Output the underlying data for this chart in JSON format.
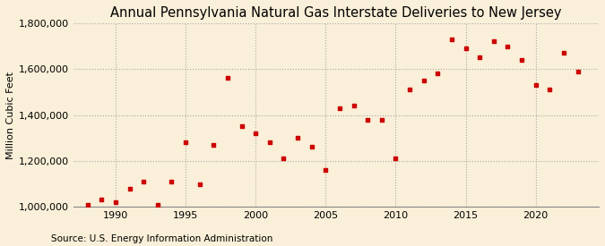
{
  "title": "Annual Pennsylvania Natural Gas Interstate Deliveries to New Jersey",
  "ylabel": "Million Cubic Feet",
  "source": "Source: U.S. Energy Information Administration",
  "background_color": "#faefd8",
  "plot_background_color": "#faefd8",
  "marker_color": "#cc0000",
  "years": [
    1988,
    1989,
    1990,
    1991,
    1992,
    1993,
    1994,
    1995,
    1996,
    1997,
    1998,
    1999,
    2000,
    2001,
    2002,
    2003,
    2004,
    2005,
    2006,
    2007,
    2008,
    2009,
    2010,
    2011,
    2012,
    2013,
    2014,
    2015,
    2016,
    2017,
    2018,
    2019,
    2020,
    2021,
    2022,
    2023
  ],
  "values": [
    1010000,
    1030000,
    1020000,
    1080000,
    1110000,
    1010000,
    1110000,
    1280000,
    1100000,
    1270000,
    1560000,
    1350000,
    1320000,
    1280000,
    1210000,
    1300000,
    1260000,
    1160000,
    1430000,
    1440000,
    1380000,
    1380000,
    1210000,
    1510000,
    1550000,
    1580000,
    1730000,
    1690000,
    1650000,
    1720000,
    1700000,
    1640000,
    1530000,
    1510000,
    1670000,
    1590000
  ],
  "ylim": [
    1000000,
    1800000
  ],
  "yticks": [
    1000000,
    1200000,
    1400000,
    1600000,
    1800000
  ],
  "xticks": [
    1990,
    1995,
    2000,
    2005,
    2010,
    2015,
    2020
  ],
  "xlim": [
    1987.0,
    2024.5
  ],
  "grid_color": "#aaaaaa",
  "title_fontsize": 10.5,
  "tick_fontsize": 8,
  "ylabel_fontsize": 8,
  "source_fontsize": 7.5,
  "marker_size": 12
}
